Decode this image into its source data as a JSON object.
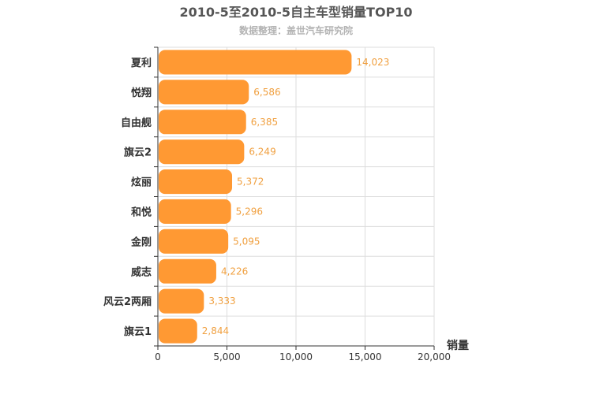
{
  "chart_data": {
    "type": "bar",
    "orientation": "horizontal",
    "title": "2010-5至2010-5自主车型销量TOP10",
    "subtitle": "数据整理：盖世汽车研究院",
    "xlabel": "销量",
    "ylabel": "",
    "categories": [
      "夏利",
      "悦翔",
      "自由舰",
      "旗云2",
      "炫丽",
      "和悦",
      "金刚",
      "威志",
      "风云2两厢",
      "旗云1"
    ],
    "values": [
      14023,
      6586,
      6385,
      6249,
      5372,
      5296,
      5095,
      4226,
      3333,
      2844
    ],
    "value_labels": [
      "14,023",
      "6,586",
      "6,385",
      "6,249",
      "5,372",
      "5,296",
      "5,095",
      "4,226",
      "3,333",
      "2,844"
    ],
    "xlim": [
      0,
      20000
    ],
    "xticks": [
      0,
      5000,
      10000,
      15000,
      20000
    ],
    "xtick_labels": [
      "0",
      "5,000",
      "10,000",
      "15,000",
      "20,000"
    ],
    "grid": true,
    "bar_color": "#ff9933",
    "value_label_color": "#f0a040"
  }
}
